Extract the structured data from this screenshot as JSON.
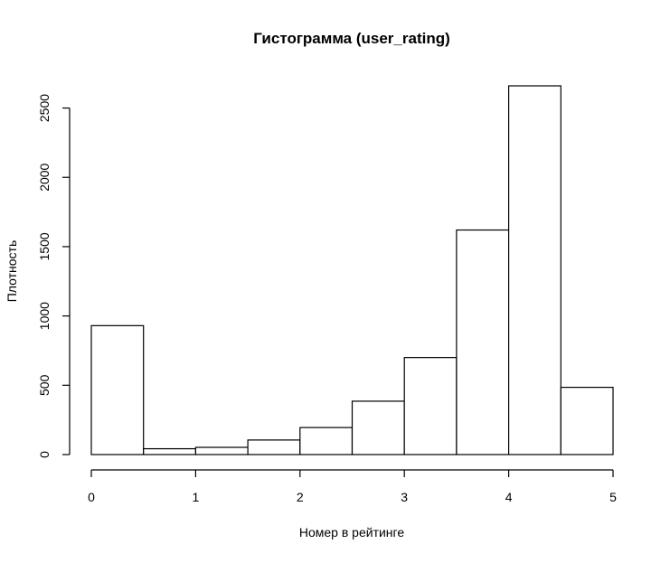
{
  "chart_data": {
    "type": "bar",
    "title": "Гистограмма (user_rating)",
    "xlabel": "Номер в рейтинге",
    "ylabel": "Плотность",
    "bins": [
      {
        "start": 0.0,
        "end": 0.5,
        "value": 930
      },
      {
        "start": 0.5,
        "end": 1.0,
        "value": 42
      },
      {
        "start": 1.0,
        "end": 1.5,
        "value": 52
      },
      {
        "start": 1.5,
        "end": 2.0,
        "value": 105
      },
      {
        "start": 2.0,
        "end": 2.5,
        "value": 195
      },
      {
        "start": 2.5,
        "end": 3.0,
        "value": 385
      },
      {
        "start": 3.0,
        "end": 3.5,
        "value": 700
      },
      {
        "start": 3.5,
        "end": 4.0,
        "value": 1620
      },
      {
        "start": 4.0,
        "end": 4.5,
        "value": 2660
      },
      {
        "start": 4.5,
        "end": 5.0,
        "value": 485
      }
    ],
    "x_ticks": [
      0,
      1,
      2,
      3,
      4,
      5
    ],
    "x_tick_labels": [
      "0",
      "1",
      "2",
      "3",
      "4",
      "5"
    ],
    "y_ticks": [
      0,
      500,
      1000,
      1500,
      2000,
      2500
    ],
    "y_tick_labels": [
      "0",
      "500",
      "1000",
      "1500",
      "2000",
      "2500"
    ],
    "xlim": [
      0,
      5
    ],
    "ylim": [
      0,
      2660
    ],
    "grid": false,
    "legend": "none"
  }
}
